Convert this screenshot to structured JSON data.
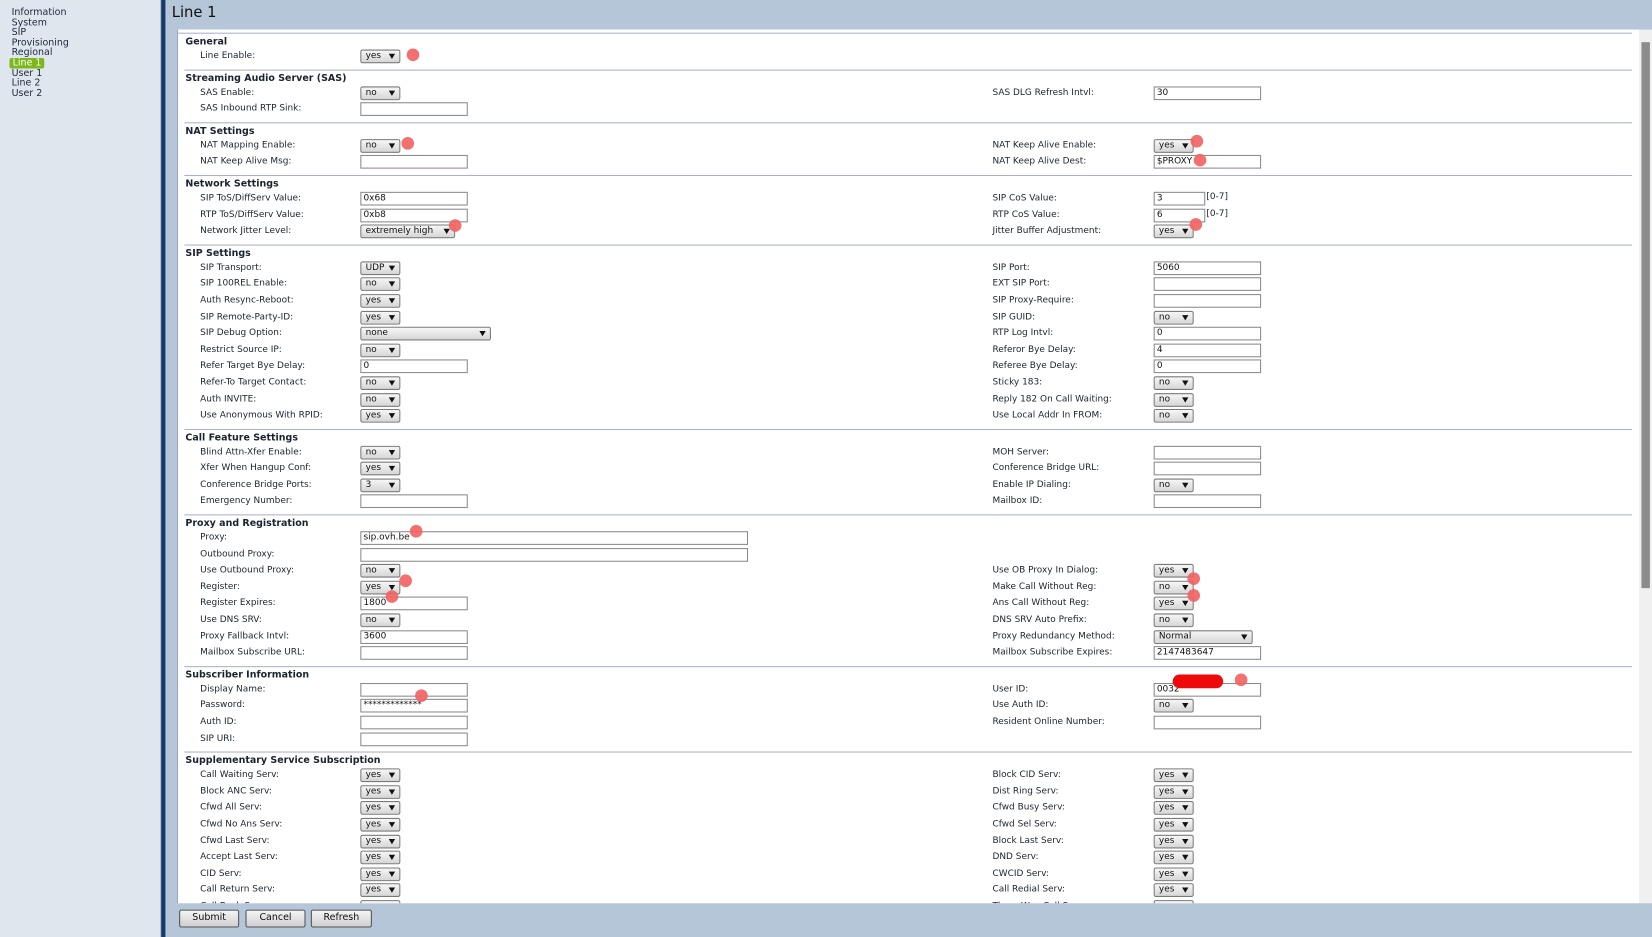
{
  "nav": [
    "Information",
    "System",
    "SIP",
    "Provisioning",
    "Regional",
    "Line 1",
    "User 1",
    "Line 2",
    "User 2"
  ],
  "title": "Line 1",
  "sections": [
    {
      "title": "General",
      "rows": [
        {
          "left": {
            "label": "Line Enable:",
            "select": "yes"
          }
        }
      ]
    },
    {
      "title": "Streaming Audio Server (SAS)",
      "rows": [
        {
          "left": {
            "label": "SAS Enable:",
            "select": "no"
          },
          "right": {
            "label": "SAS DLG Refresh Intvl:",
            "input": "30"
          }
        },
        {
          "left": {
            "label": "SAS Inbound RTP Sink:",
            "input": null
          }
        }
      ]
    },
    {
      "title": "NAT Settings",
      "rows": [
        {
          "left": {
            "label": "NAT Mapping Enable:",
            "select": "no"
          },
          "right": {
            "label": "NAT Keep Alive Enable:",
            "select": "yes"
          }
        },
        {
          "left": {
            "label": "NAT Keep Alive Msg:",
            "input": null
          },
          "right": {
            "label": "NAT Keep Alive Dest:",
            "input": "$PROXY"
          }
        }
      ]
    },
    {
      "title": "Network Settings",
      "rows": [
        {
          "left": {
            "label": "SIP ToS/DiffServ Value:",
            "input": "0x68"
          },
          "right": {
            "label": "SIP CoS Value:",
            "input": "3",
            "suffix": "[0-7]"
          }
        },
        {
          "left": {
            "label": "RTP ToS/DiffServ Value:",
            "input": "0xb8"
          },
          "right": {
            "label": "RTP CoS Value:",
            "input": "6",
            "suffix": "[0-7]"
          }
        },
        {
          "left": {
            "label": "Network Jitter Level:",
            "select": "extremely high"
          },
          "right": {
            "label": "Jitter Buffer Adjustment:",
            "select": "yes"
          }
        }
      ]
    },
    {
      "title": "SIP Settings",
      "rows": [
        {
          "left": {
            "label": "SIP Transport:",
            "select": "UDP"
          },
          "right": {
            "label": "SIP Port:",
            "input": "5060"
          }
        },
        {
          "left": {
            "label": "SIP 100REL Enable:",
            "select": "no"
          },
          "right": {
            "label": "EXT SIP Port:",
            "input": null
          }
        },
        {
          "left": {
            "label": "Auth Resync-Reboot:",
            "select": "yes"
          },
          "right": {
            "label": "SIP Proxy-Require:",
            "input": null
          }
        },
        {
          "left": {
            "label": "SIP Remote-Party-ID:",
            "select": "yes"
          },
          "right": {
            "label": "SIP GUID:",
            "select": "no"
          }
        },
        {
          "left": {
            "label": "SIP Debug Option:",
            "select": "none"
          },
          "right": {
            "label": "RTP Log Intvl:",
            "input": "0"
          }
        },
        {
          "left": {
            "label": "Restrict Source IP:",
            "select": "no"
          },
          "right": {
            "label": "Referor Bye Delay:",
            "input": "4"
          }
        },
        {
          "left": {
            "label": "Refer Target Bye Delay:",
            "input": "0"
          },
          "right": {
            "label": "Referee Bye Delay:",
            "input": "0"
          }
        },
        {
          "left": {
            "label": "Refer-To Target Contact:",
            "select": "no"
          },
          "right": {
            "label": "Sticky 183:",
            "select": "no"
          }
        },
        {
          "left": {
            "label": "Auth INVITE:",
            "select": "no"
          },
          "right": {
            "label": "Reply 182 On Call Waiting:",
            "select": "no"
          }
        },
        {
          "left": {
            "label": "Use Anonymous With RPID:",
            "select": "yes"
          },
          "right": {
            "label": "Use Local Addr In FROM:",
            "select": "no"
          }
        }
      ]
    },
    {
      "title": "Call Feature Settings",
      "rows": [
        {
          "left": {
            "label": "Blind Attn-Xfer Enable:",
            "select": "no"
          },
          "right": {
            "label": "MOH Server:",
            "input": null
          }
        },
        {
          "left": {
            "label": "Xfer When Hangup Conf:",
            "select": "yes"
          },
          "right": {
            "label": "Conference Bridge URL:",
            "input": null
          }
        },
        {
          "left": {
            "label": "Conference Bridge Ports:",
            "select": "3"
          },
          "right": {
            "label": "Enable IP Dialing:",
            "select": "no"
          }
        },
        {
          "left": {
            "label": "Emergency Number:",
            "input": null
          },
          "right": {
            "label": "Mailbox ID:",
            "input": null
          }
        }
      ]
    },
    {
      "title": "Proxy and Registration",
      "rows": [
        {
          "left": {
            "label": "Proxy:",
            "input": "sip.ovh.be"
          }
        },
        {
          "left": {
            "label": "Outbound Proxy:",
            "input": null
          }
        },
        {
          "left": {
            "label": "Use Outbound Proxy:",
            "select": "no"
          },
          "right": {
            "label": "Use OB Proxy In Dialog:",
            "select": "yes"
          }
        },
        {
          "left": {
            "label": "Register:",
            "select": "yes"
          },
          "right": {
            "label": "Make Call Without Reg:",
            "select": "no"
          }
        },
        {
          "left": {
            "label": "Register Expires:",
            "input": "1800"
          },
          "right": {
            "label": "Ans Call Without Reg:",
            "select": "yes"
          }
        },
        {
          "left": {
            "label": "Use DNS SRV:",
            "select": "no"
          },
          "right": {
            "label": "DNS SRV Auto Prefix:",
            "select": "no"
          }
        },
        {
          "left": {
            "label": "Proxy Fallback Intvl:",
            "input": "3600"
          },
          "right": {
            "label": "Proxy Redundancy Method:",
            "select": "Normal"
          }
        },
        {
          "left": {
            "label": "Mailbox Subscribe URL:",
            "input": null
          },
          "right": {
            "label": "Mailbox Subscribe Expires:",
            "input": "2147483647"
          }
        }
      ]
    },
    {
      "title": "Subscriber Information",
      "rows": [
        {
          "left": {
            "label": "Display Name:",
            "input": null
          },
          "right": {
            "label": "User ID:",
            "input": "0032"
          }
        },
        {
          "left": {
            "label": "Password:",
            "input": "*************"
          },
          "right": {
            "label": "Use Auth ID:",
            "select": "no"
          }
        },
        {
          "left": {
            "label": "Auth ID:",
            "input": null
          },
          "right": {
            "label": "Resident Online Number:",
            "input": null
          }
        },
        {
          "left": {
            "label": "SIP URI:",
            "input": null
          }
        }
      ]
    },
    {
      "title": "Supplementary Service Subscription",
      "rows": [
        {
          "left": {
            "label": "Call Waiting Serv:",
            "select": "yes"
          },
          "right": {
            "label": "Block CID Serv:",
            "select": "yes"
          }
        },
        {
          "left": {
            "label": "Block ANC Serv:",
            "select": "yes"
          },
          "right": {
            "label": "Dist Ring Serv:",
            "select": "yes"
          }
        },
        {
          "left": {
            "label": "Cfwd All Serv:",
            "select": "yes"
          },
          "right": {
            "label": "Cfwd Busy Serv:",
            "select": "yes"
          }
        },
        {
          "left": {
            "label": "Cfwd No Ans Serv:",
            "select": "yes"
          },
          "right": {
            "label": "Cfwd Sel Serv:",
            "select": "yes"
          }
        },
        {
          "left": {
            "label": "Cfwd Last Serv:",
            "select": "yes"
          },
          "right": {
            "label": "Block Last Serv:",
            "select": "yes"
          }
        },
        {
          "left": {
            "label": "Accept Last Serv:",
            "select": "yes"
          },
          "right": {
            "label": "DND Serv:",
            "select": "yes"
          }
        },
        {
          "left": {
            "label": "CID Serv:",
            "select": "yes"
          },
          "right": {
            "label": "CWCID Serv:",
            "select": "yes"
          }
        },
        {
          "left": {
            "label": "Call Return Serv:",
            "select": "yes"
          },
          "right": {
            "label": "Call Redial Serv:",
            "select": "yes"
          }
        },
        {
          "left": {
            "label": "Call Back Serv:",
            "select": "yes"
          },
          "right": {
            "label": "Three Way Call Serv:",
            "select": "yes"
          }
        }
      ]
    }
  ],
  "buttons": [
    "Submit",
    "Cancel",
    "Refresh"
  ]
}
